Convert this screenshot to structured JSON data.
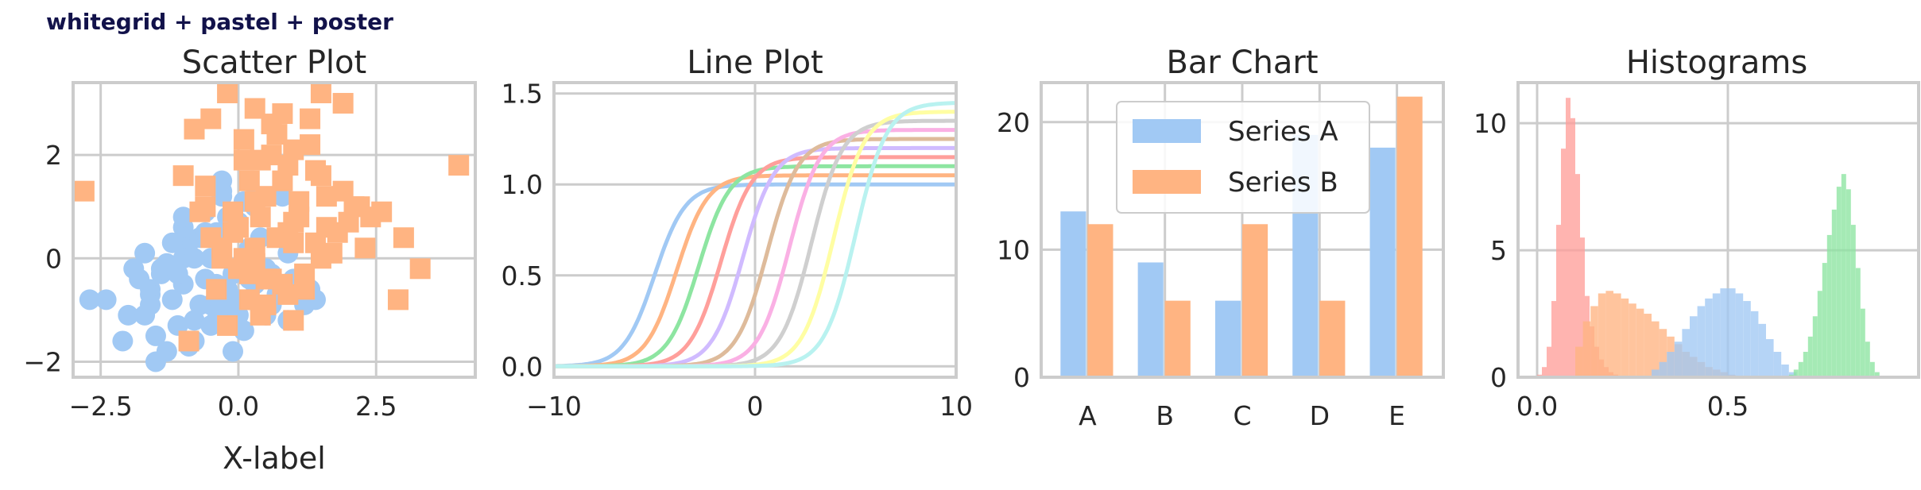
{
  "suptitle": "whitegrid + pastel + poster",
  "colors": {
    "blue": "#a1c9f4",
    "orange": "#ffb482",
    "green": "#8de5a1",
    "red": "#ff9f9b",
    "purple": "#d0bbff",
    "brown": "#debb9b",
    "pink": "#fab0e4",
    "gray": "#cfcfcf",
    "yellow": "#fffea3",
    "cyan": "#b9f2f0"
  },
  "chart_data": [
    {
      "type": "scatter",
      "title": "Scatter Plot",
      "xlabel": "X-label",
      "ylabel": "",
      "xlim": [
        -3.0,
        4.3
      ],
      "ylim": [
        -2.3,
        3.4
      ],
      "xticks": [
        "−2.5",
        "0.0",
        "2.5"
      ],
      "xtick_values": [
        -2.5,
        0.0,
        2.5
      ],
      "yticks": [
        "−2",
        "0",
        "2"
      ],
      "ytick_values": [
        -2,
        0,
        2
      ],
      "series": [
        {
          "marker": "circle",
          "color": "#a1c9f4",
          "x": [
            -1.4,
            -1.0,
            -0.5,
            -0.2,
            0.2,
            0.5,
            0.8,
            1.2,
            -1.9,
            -1.6,
            -1.2,
            -0.8,
            -0.6,
            -0.3,
            0.0,
            0.3,
            0.6,
            0.9,
            -2.4,
            -2.0,
            -1.5,
            -1.1,
            -0.7,
            -0.4,
            0.1,
            0.4,
            0.7,
            1.0,
            1.3,
            -1.7,
            -1.3,
            -0.9,
            -0.5,
            -0.1,
            0.2,
            -1.0,
            -0.6,
            -0.3,
            0.0,
            0.4,
            -1.8,
            -1.4,
            -1.0,
            -0.7,
            -0.2,
            0.3,
            -1.2,
            -0.8,
            -0.4,
            0.1,
            -2.1,
            -1.6,
            -1.1,
            -0.6,
            -0.3,
            0.5,
            0.9,
            -1.5,
            -0.9,
            -0.2,
            0.3,
            -1.3,
            -0.5,
            0.0,
            -0.8,
            -1.0,
            -0.4,
            0.2,
            0.6,
            1.4,
            -1.6,
            -2.7,
            -0.3,
            0.8,
            -0.1,
            -1.7
          ],
          "y": [
            -0.3,
            -0.5,
            -0.9,
            -1.0,
            -0.8,
            -1.1,
            -0.6,
            -0.9,
            -0.2,
            -0.6,
            -0.8,
            -1.2,
            -0.4,
            -0.7,
            -1.1,
            -0.5,
            -0.9,
            -1.2,
            -0.8,
            -1.1,
            -1.5,
            -1.3,
            -0.9,
            -1.2,
            -1.4,
            -1.0,
            -0.7,
            -0.4,
            -0.6,
            0.1,
            -0.1,
            0.3,
            0.0,
            -0.3,
            0.2,
            0.6,
            0.9,
            1.2,
            0.7,
            0.4,
            -0.4,
            -0.2,
            0.0,
            0.4,
            0.8,
            1.0,
            0.3,
            0.0,
            -0.5,
            1.1,
            -1.6,
            -0.7,
            -0.3,
            0.5,
            1.3,
            -0.2,
            0.1,
            -2.0,
            -1.7,
            -0.6,
            1.2,
            -1.8,
            -1.3,
            -0.8,
            -1.6,
            0.8,
            0.5,
            -0.4,
            -0.3,
            -0.8,
            -0.9,
            -0.8,
            1.5,
            1.2,
            -1.8,
            -1.1
          ]
        },
        {
          "marker": "square",
          "color": "#ffb482",
          "x": [
            -0.2,
            0.3,
            0.6,
            0.1,
            1.0,
            1.5,
            0.8,
            0.4,
            -0.5,
            -0.8,
            0.2,
            0.9,
            1.3,
            1.9,
            2.2,
            0.5,
            -0.1,
            -0.6,
            1.1,
            1.6,
            0.7,
            0.3,
            -0.3,
            0.0,
            0.9,
            1.4,
            2.0,
            2.6,
            0.6,
            -0.4,
            0.2,
            0.8,
            1.2,
            1.7,
            0.4,
            -0.9,
            -0.2,
            0.5,
            1.0,
            1.5,
            2.3,
            3.0,
            3.3,
            4.0,
            -2.8,
            -1.0,
            -0.6,
            0.1,
            0.7,
            1.3,
            1.9,
            0.0,
            0.4,
            1.1,
            1.5,
            -0.5,
            0.2,
            0.9,
            2.4,
            2.9,
            1.2,
            0.5,
            -0.3,
            -0.7,
            0.3,
            1.0,
            1.6,
            0.8,
            0.1,
            -0.1,
            1.4,
            0.6,
            1.8,
            2.1,
            1.0,
            0.3
          ],
          "y": [
            3.2,
            2.9,
            2.6,
            2.3,
            2.1,
            3.2,
            2.8,
            1.9,
            2.7,
            2.5,
            1.5,
            1.8,
            2.2,
            1.3,
            1.0,
            1.2,
            0.9,
            1.4,
            0.8,
            0.6,
            0.4,
            0.2,
            0.0,
            -0.2,
            0.5,
            0.3,
            0.7,
            0.9,
            -0.4,
            -0.6,
            -0.8,
            -0.5,
            -0.3,
            0.1,
            -1.1,
            -1.6,
            -1.3,
            -0.9,
            -1.2,
            0.0,
            0.2,
            0.4,
            -0.2,
            1.8,
            1.3,
            1.6,
            1.0,
            1.9,
            2.4,
            2.7,
            3.0,
            0.6,
            0.8,
            1.1,
            1.6,
            0.4,
            -0.3,
            -0.7,
            0.8,
            -0.8,
            -0.6,
            -0.4,
            0.2,
            0.9,
            1.1,
            0.3,
            1.2,
            1.5,
            0.0,
            0.5,
            1.7,
            2.0,
            0.5,
            1.0,
            0.7,
            -0.1
          ]
        }
      ]
    },
    {
      "type": "line",
      "title": "Line Plot",
      "xlabel": "",
      "ylabel": "",
      "xlim": [
        -10,
        10
      ],
      "ylim": [
        -0.06,
        1.56
      ],
      "xticks": [
        "−10",
        "0",
        "10"
      ],
      "xtick_values": [
        -10,
        0,
        10
      ],
      "yticks": [
        "0.0",
        "0.5",
        "1.0",
        "1.5"
      ],
      "ytick_values": [
        0.0,
        0.5,
        1.0,
        1.5
      ],
      "series": [
        {
          "color": "#a1c9f4",
          "shift": -5.0,
          "top": 1.0
        },
        {
          "color": "#ffb482",
          "shift": -3.9,
          "top": 1.05
        },
        {
          "color": "#8de5a1",
          "shift": -2.8,
          "top": 1.1
        },
        {
          "color": "#ff9f9b",
          "shift": -1.7,
          "top": 1.15
        },
        {
          "color": "#d0bbff",
          "shift": -0.6,
          "top": 1.2
        },
        {
          "color": "#debb9b",
          "shift": 0.6,
          "top": 1.25
        },
        {
          "color": "#fab0e4",
          "shift": 1.7,
          "top": 1.3
        },
        {
          "color": "#cfcfcf",
          "shift": 2.8,
          "top": 1.35
        },
        {
          "color": "#fffea3",
          "shift": 3.9,
          "top": 1.4
        },
        {
          "color": "#b9f2f0",
          "shift": 5.0,
          "top": 1.45
        }
      ]
    },
    {
      "type": "bar",
      "title": "Bar Chart",
      "xlabel": "",
      "ylabel": "",
      "categories": [
        "A",
        "B",
        "C",
        "D",
        "E"
      ],
      "ylim": [
        0,
        23.1
      ],
      "yticks": [
        "0",
        "10",
        "20"
      ],
      "ytick_values": [
        0,
        10,
        20
      ],
      "legend_position": "top-center",
      "series": [
        {
          "name": "Series A",
          "color": "#a1c9f4",
          "values": [
            13,
            9,
            6,
            19,
            18
          ]
        },
        {
          "name": "Series B",
          "color": "#ffb482",
          "values": [
            12,
            6,
            12,
            6,
            22
          ]
        }
      ]
    },
    {
      "type": "histogram",
      "title": "Histograms",
      "xlabel": "",
      "ylabel": "",
      "xlim": [
        -0.05,
        1.0
      ],
      "ylim": [
        0,
        11.6
      ],
      "xticks": [
        "0.0",
        "0.5"
      ],
      "xtick_values": [
        0.0,
        0.5
      ],
      "yticks": [
        "0",
        "5",
        "10"
      ],
      "ytick_values": [
        0,
        5,
        10
      ],
      "series": [
        {
          "color": "#ff9f9b",
          "bin_start": 0.0,
          "bin_width": 0.0125,
          "counts": [
            0.1,
            0.4,
            1.2,
            3.0,
            6.0,
            9.0,
            11.0,
            10.2,
            8.0,
            5.5,
            3.2,
            2.0,
            1.2,
            0.7,
            0.4,
            0.2,
            0.1
          ]
        },
        {
          "color": "#ffb482",
          "bin_start": 0.1,
          "bin_width": 0.02,
          "counts": [
            1.2,
            2.2,
            2.8,
            3.3,
            3.4,
            3.3,
            3.1,
            2.9,
            2.7,
            2.5,
            2.2,
            1.9,
            1.6,
            1.3,
            1.0,
            0.8,
            0.6,
            0.4,
            0.3,
            0.2,
            0.1
          ]
        },
        {
          "color": "#a1c9f4",
          "bin_start": 0.3,
          "bin_width": 0.02,
          "counts": [
            0.3,
            0.6,
            1.0,
            1.4,
            1.9,
            2.4,
            2.8,
            3.1,
            3.3,
            3.5,
            3.5,
            3.3,
            3.0,
            2.6,
            2.1,
            1.5,
            1.0,
            0.5,
            0.2
          ]
        },
        {
          "color": "#8de5a1",
          "bin_start": 0.66,
          "bin_width": 0.0125,
          "counts": [
            0.1,
            0.3,
            0.6,
            1.0,
            1.6,
            2.4,
            3.4,
            4.5,
            5.6,
            6.6,
            7.5,
            8.0,
            7.4,
            6.0,
            4.3,
            2.7,
            1.4,
            0.6,
            0.2
          ]
        }
      ]
    }
  ]
}
